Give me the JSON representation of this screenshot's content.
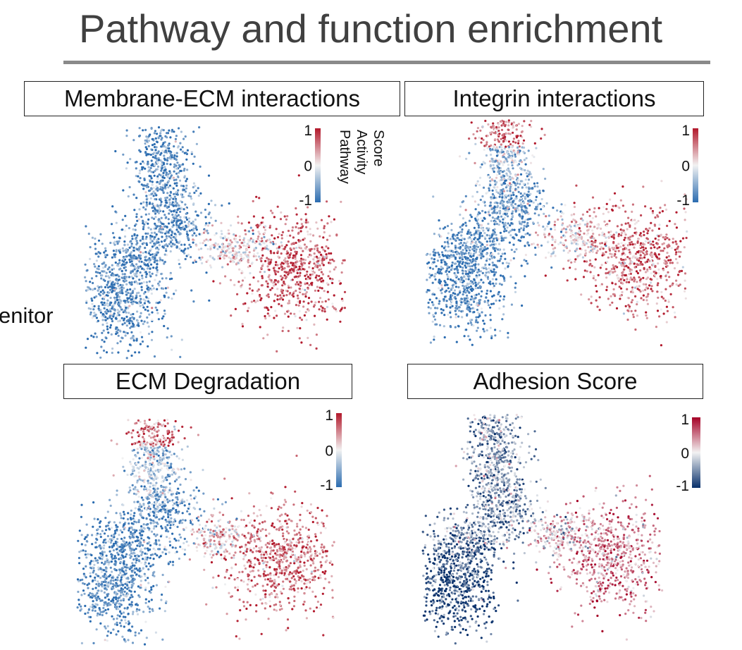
{
  "slide": {
    "title": "Pathway and function enrichment",
    "side_label": "enitor"
  },
  "colors": {
    "low": "#2b6cb0",
    "mid": "#f2f2f2",
    "high": "#b2182b",
    "low_dark": "#08306b",
    "high_dark": "#a50026"
  },
  "chart_data": [
    {
      "type": "scatter",
      "title": "Membrane-ECM interactions",
      "colorbar": {
        "ticks": [
          "1",
          "0",
          "-1"
        ],
        "range": [
          -1,
          1
        ],
        "label_lines": [
          "Pathway",
          "Activity",
          "Score"
        ]
      },
      "pattern": "left-low-right-high"
    },
    {
      "type": "scatter",
      "title": "Integrin interactions",
      "colorbar": {
        "ticks": [
          "1",
          "0",
          "-1"
        ],
        "range": [
          -1,
          1
        ]
      },
      "pattern": "top-high-left-low-right-high"
    },
    {
      "type": "scatter",
      "title": "ECM Degradation",
      "colorbar": {
        "ticks": [
          "1",
          "0",
          "-1"
        ],
        "range": [
          -1,
          1
        ]
      },
      "pattern": "top-high-left-low-right-high"
    },
    {
      "type": "scatter",
      "title": "Adhesion Score",
      "colorbar": {
        "ticks": [
          "1",
          "0",
          "-1"
        ],
        "range": [
          -1,
          1
        ]
      },
      "pattern": "left-dark-low-right-moderate-high"
    }
  ]
}
